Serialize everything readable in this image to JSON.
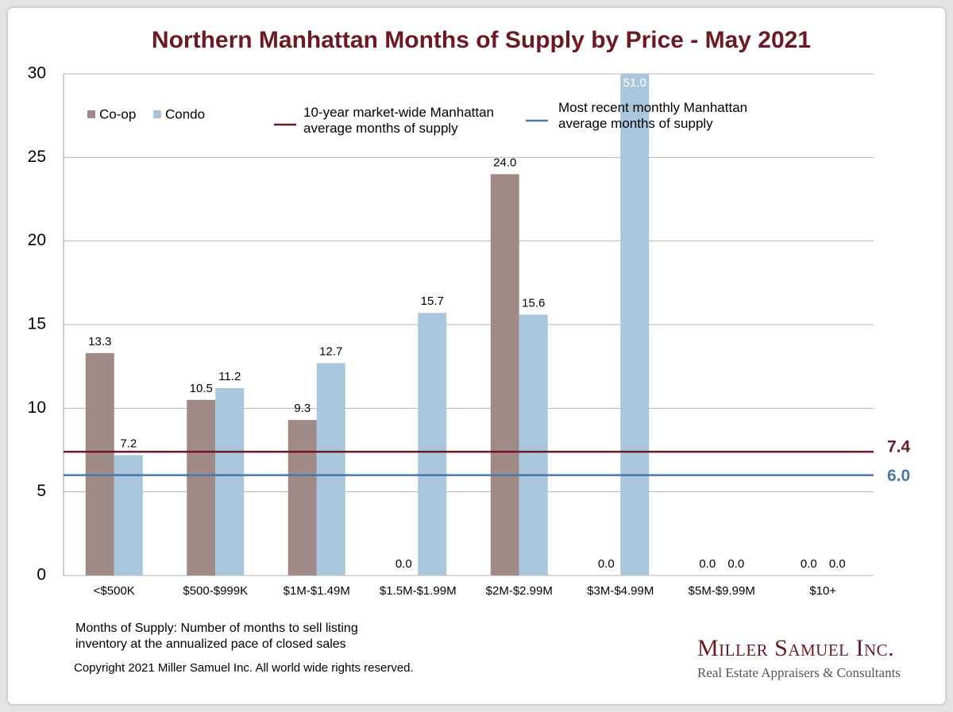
{
  "chart_data": {
    "type": "bar",
    "title": "Northern Manhattan Months of Supply by Price - May 2021",
    "categories": [
      "<$500K",
      "$500-$999K",
      "$1M-$1.49M",
      "$1.5M-$1.99M",
      "$2M-$2.99M",
      "$3M-$4.99M",
      "$5M-$9.99M",
      "$10+"
    ],
    "series": [
      {
        "name": "Co-op",
        "color": "#a08a88",
        "values": [
          13.3,
          10.5,
          9.3,
          0,
          24,
          0,
          0,
          0
        ],
        "value_labels": [
          "13.3",
          "10.5",
          "9.3",
          "0.0",
          "24.0",
          "0.0",
          "0.0",
          "0.0"
        ]
      },
      {
        "name": "Condo",
        "color": "#a9c6dc",
        "values": [
          7.2,
          11.2,
          12.7,
          15.7,
          15.6,
          51,
          0,
          0
        ],
        "value_labels": [
          "7.2",
          "11.2",
          "12.7",
          "15.7",
          "15.6",
          "51.0",
          "0.0",
          "0.0"
        ]
      }
    ],
    "reference_lines": [
      {
        "name": "10-year market-wide Manhattan average months of supply",
        "value": 7.4,
        "value_label": "7.4",
        "color": "#6b1a24"
      },
      {
        "name": "Most recent monthly Manhattan average months of supply",
        "value": 6,
        "value_label": "6.0",
        "color": "#4a78a8"
      }
    ],
    "ylim": [
      0,
      30
    ],
    "yticks": [
      0,
      5,
      10,
      15,
      20,
      25,
      30
    ],
    "grid": true,
    "footnote": "Months of Supply: Number of months to sell listing inventory at the annualized pace of closed sales",
    "copyright": "Copyright 2021 Miller Samuel Inc.  All world wide rights reserved.",
    "brand": "Miller Samuel Inc.",
    "brand_tagline": "Real Estate Appraisers & Consultants"
  }
}
